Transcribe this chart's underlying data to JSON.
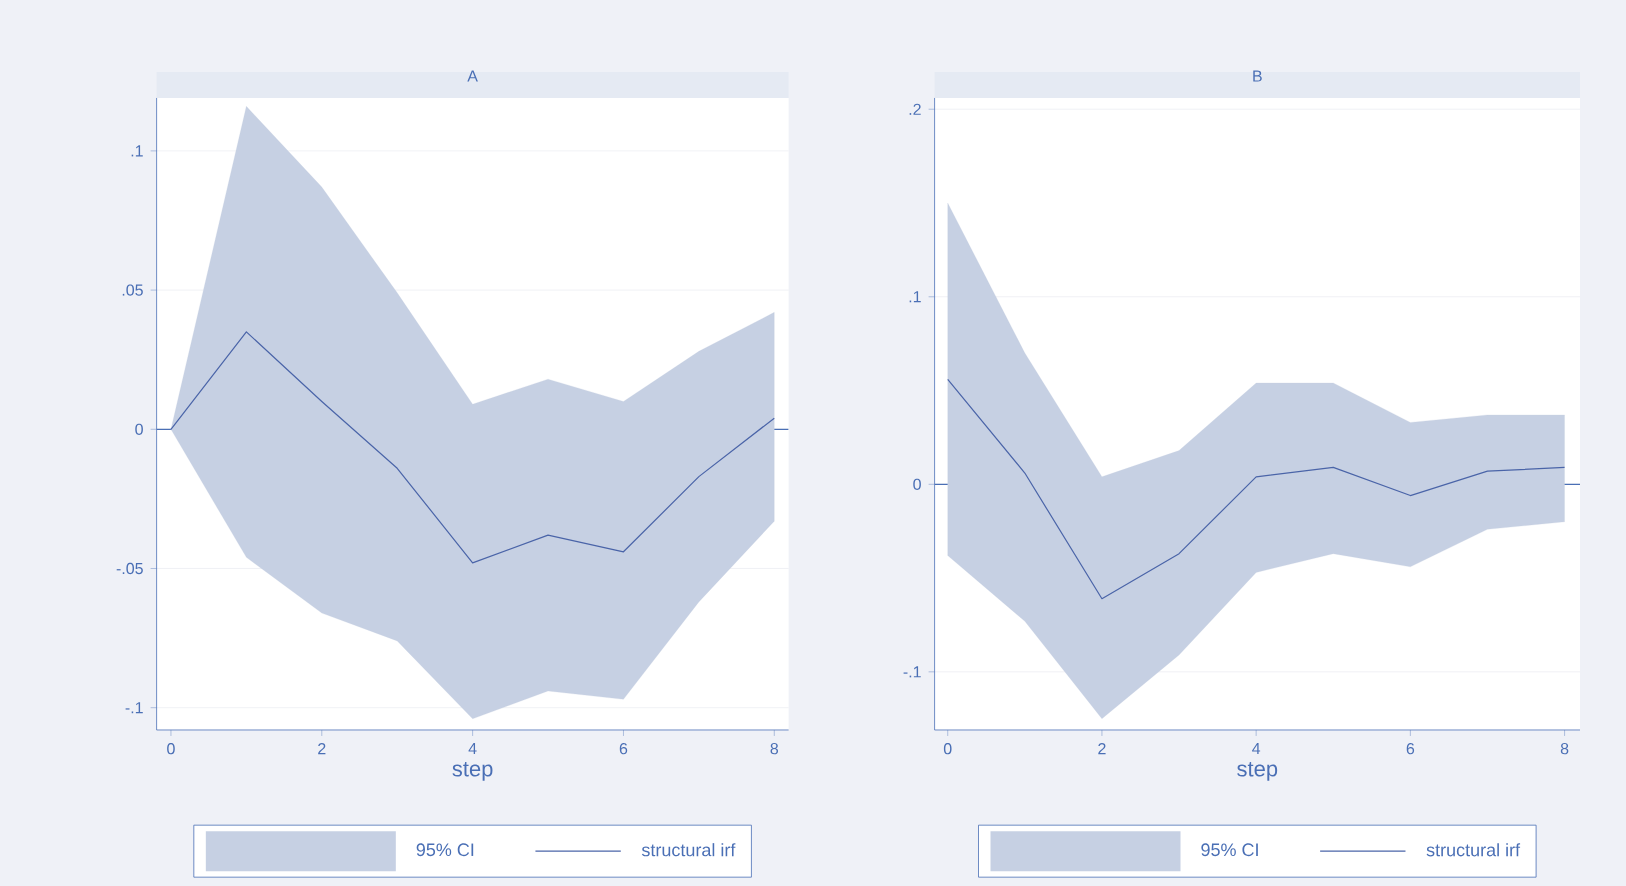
{
  "chart_data": [
    {
      "type": "line",
      "title": "A",
      "xlabel": "step",
      "x": [
        0,
        1,
        2,
        3,
        4,
        5,
        6,
        7,
        8
      ],
      "series": [
        {
          "name": "structural irf",
          "color": "#4a64a8",
          "values": [
            0,
            0.035,
            0.01,
            -0.014,
            -0.048,
            -0.038,
            -0.044,
            -0.017,
            0.004
          ],
          "lower": [
            0,
            -0.046,
            -0.066,
            -0.076,
            -0.104,
            -0.094,
            -0.097,
            -0.062,
            -0.033
          ],
          "upper": [
            0,
            0.116,
            0.087,
            0.049,
            0.009,
            0.018,
            0.01,
            0.028,
            0.042
          ]
        }
      ],
      "annotations": [
        "95% CI"
      ],
      "xlim": [
        -0.19,
        8.19
      ],
      "ylim": [
        -0.108,
        0.119
      ],
      "xticks": [
        0,
        2,
        4,
        6,
        8
      ],
      "yticks": [
        {
          "value": -0.1,
          "label": "-.1"
        },
        {
          "value": -0.05,
          "label": "-.05"
        },
        {
          "value": 0,
          "label": "0"
        },
        {
          "value": 0.05,
          "label": ".05"
        },
        {
          "value": 0.1,
          "label": ".1"
        }
      ],
      "ref_lines": [
        {
          "axis": "y",
          "value": 0,
          "color": "#4a6fb5"
        }
      ],
      "grid": "y",
      "legend": "bottom",
      "line_style": "solid"
    },
    {
      "type": "line",
      "title": "B",
      "xlabel": "step",
      "x": [
        0,
        1,
        2,
        3,
        4,
        5,
        6,
        7,
        8
      ],
      "series": [
        {
          "name": "structural irf",
          "color": "#4a64a8",
          "values": [
            0.056,
            0.006,
            -0.061,
            -0.037,
            0.004,
            0.009,
            -0.006,
            0.007,
            0.009
          ],
          "lower": [
            -0.038,
            -0.073,
            -0.125,
            -0.091,
            -0.047,
            -0.037,
            -0.044,
            -0.024,
            -0.02
          ],
          "upper": [
            0.15,
            0.07,
            0.004,
            0.018,
            0.054,
            0.054,
            0.033,
            0.037,
            0.037
          ]
        }
      ],
      "annotations": [
        "95% CI"
      ],
      "xlim": [
        -0.17,
        8.2
      ],
      "ylim": [
        -0.131,
        0.206
      ],
      "xticks": [
        0,
        2,
        4,
        6,
        8
      ],
      "yticks": [
        {
          "value": -0.1,
          "label": "-.1"
        },
        {
          "value": 0,
          "label": "0"
        },
        {
          "value": 0.1,
          "label": ".1"
        },
        {
          "value": 0.2,
          "label": ".2"
        }
      ],
      "ref_lines": [
        {
          "axis": "y",
          "value": 0,
          "color": "#4a6fb5"
        }
      ],
      "grid": "y",
      "legend": "bottom",
      "line_style": "solid"
    }
  ]
}
